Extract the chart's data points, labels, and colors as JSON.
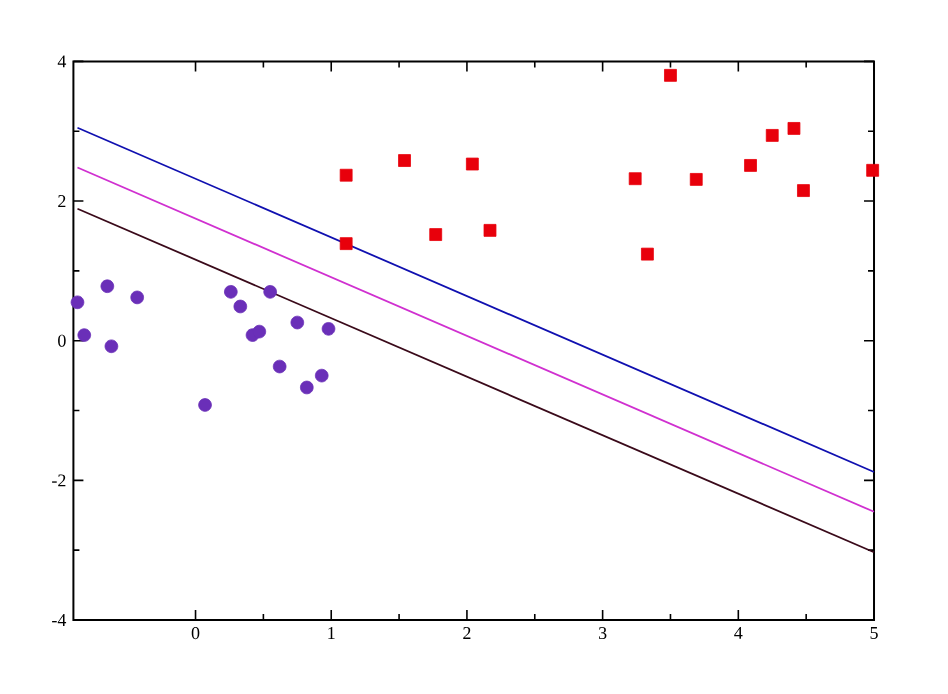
{
  "chart_data": {
    "type": "scatter",
    "xlim": [
      -0.9,
      5
    ],
    "ylim": [
      -4,
      4
    ],
    "xticks": [
      0,
      1,
      2,
      3,
      4,
      5
    ],
    "yticks": [
      -4,
      -2,
      0,
      2,
      4
    ],
    "grid": false,
    "series": [
      {
        "marker": "circle",
        "color": "#6a2fb8",
        "x": [
          -0.87,
          -0.82,
          -0.65,
          -0.62,
          -0.43,
          0.07,
          0.26,
          0.33,
          0.42,
          0.47,
          0.55,
          0.62,
          0.75,
          0.82,
          0.93,
          0.98
        ],
        "values": [
          0.55,
          0.08,
          0.78,
          -0.08,
          0.62,
          -0.92,
          0.7,
          0.49,
          0.08,
          0.13,
          0.7,
          -0.37,
          0.26,
          -0.67,
          -0.5,
          0.17
        ]
      },
      {
        "marker": "square",
        "color": "#e8000b",
        "x": [
          1.11,
          1.11,
          1.54,
          1.77,
          2.04,
          2.17,
          3.24,
          3.33,
          3.5,
          3.69,
          4.09,
          4.25,
          4.41,
          4.48,
          4.99
        ],
        "values": [
          2.37,
          1.39,
          2.58,
          1.52,
          2.53,
          1.58,
          2.32,
          1.24,
          3.8,
          2.31,
          2.51,
          2.94,
          3.04,
          2.15,
          2.44
        ]
      },
      {
        "type": "line",
        "line_style": "solid",
        "color": "#1010b0",
        "x": [
          -0.87,
          5
        ],
        "values": [
          3.05,
          -1.88
        ]
      },
      {
        "type": "line",
        "line_style": "solid",
        "color": "#d030d0",
        "x": [
          -0.87,
          5
        ],
        "values": [
          2.48,
          -2.45
        ]
      },
      {
        "type": "line",
        "line_style": "solid",
        "color": "#3a0a1a",
        "x": [
          -0.87,
          5
        ],
        "values": [
          1.89,
          -3.03
        ]
      }
    ]
  }
}
